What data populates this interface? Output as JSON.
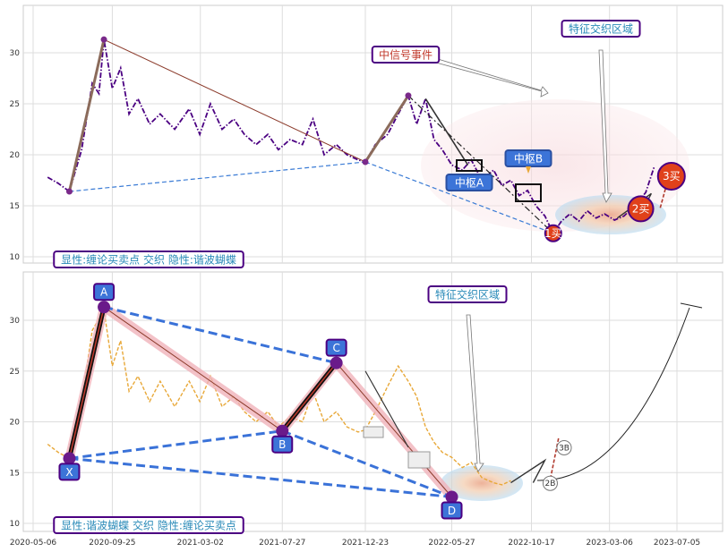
{
  "chart_data": [
    {
      "type": "line",
      "panel": "top",
      "ylim": [
        9,
        34
      ],
      "yticks": [
        10,
        15,
        20,
        25,
        30
      ],
      "grid": true,
      "price_series": {
        "color": "#4b0082",
        "style": "dash-dot",
        "x": [
          "2020-06-01",
          "2020-06-20",
          "2020-07-10",
          "2020-08-01",
          "2020-08-20",
          "2020-09-01",
          "2020-09-10",
          "2020-09-25",
          "2020-10-10",
          "2020-10-25",
          "2020-11-10",
          "2020-12-01",
          "2020-12-20",
          "2021-01-15",
          "2021-02-10",
          "2021-03-01",
          "2021-03-20",
          "2021-04-10",
          "2021-05-01",
          "2021-05-20",
          "2021-06-10",
          "2021-07-01",
          "2021-07-20",
          "2021-08-10",
          "2021-09-01",
          "2021-09-20",
          "2021-10-10",
          "2021-11-01",
          "2021-11-20",
          "2021-12-10",
          "2021-12-23",
          "2022-01-10",
          "2022-02-01",
          "2022-02-20",
          "2022-03-10",
          "2022-03-25",
          "2022-04-10",
          "2022-04-25",
          "2022-05-10",
          "2022-05-27",
          "2022-06-15",
          "2022-07-01",
          "2022-07-20",
          "2022-08-10",
          "2022-08-25",
          "2022-09-10",
          "2022-09-25",
          "2022-10-10",
          "2022-10-25",
          "2022-11-10",
          "2022-11-25",
          "2022-12-10",
          "2022-12-25",
          "2023-01-10",
          "2023-01-25",
          "2023-02-10",
          "2023-02-25",
          "2023-03-15",
          "2023-04-01",
          "2023-04-20",
          "2023-05-10",
          "2023-05-25"
        ],
        "y": [
          17.8,
          17.2,
          16.4,
          20.5,
          27.0,
          26.0,
          31.3,
          26.5,
          28.5,
          24.0,
          25.5,
          23.0,
          24.0,
          22.5,
          24.5,
          22.0,
          25.0,
          22.5,
          23.5,
          22.0,
          21.0,
          22.0,
          20.5,
          21.5,
          21.0,
          23.5,
          20.0,
          21.0,
          20.0,
          19.5,
          19.3,
          21.0,
          22.0,
          24.0,
          25.8,
          23.0,
          25.5,
          21.5,
          20.5,
          19.0,
          18.5,
          19.5,
          17.5,
          18.5,
          17.0,
          17.5,
          16.0,
          16.5,
          15.0,
          14.0,
          12.3,
          13.5,
          14.2,
          13.5,
          14.5,
          13.8,
          14.2,
          13.6,
          14.0,
          15.0,
          16.3,
          18.8
        ]
      },
      "segments": [
        {
          "x": [
            "2020-07-10",
            "2020-09-10"
          ],
          "y": [
            16.4,
            31.3
          ],
          "color": "#8b6b5b",
          "width": 3
        },
        {
          "x": [
            "2020-09-10",
            "2021-12-23"
          ],
          "y": [
            31.3,
            19.3
          ],
          "color": "#8b3a2a",
          "width": 1
        },
        {
          "x": [
            "2021-12-23",
            "2022-03-10"
          ],
          "y": [
            19.3,
            25.8
          ],
          "color": "#8b6b5b",
          "width": 3
        },
        {
          "x": [
            "2020-07-10",
            "2021-12-23"
          ],
          "y": [
            16.4,
            19.3
          ],
          "color": "#3a7bd5",
          "width": 1.2,
          "dash": true
        },
        {
          "x": [
            "2021-12-23",
            "2022-11-25"
          ],
          "y": [
            19.3,
            12.3
          ],
          "color": "#3a7bd5",
          "width": 1.2,
          "dash": true
        }
      ],
      "pivots": [
        {
          "x": "2020-07-10",
          "y": 16.4
        },
        {
          "x": "2020-09-10",
          "y": 31.3
        },
        {
          "x": "2021-12-23",
          "y": 19.3
        },
        {
          "x": "2022-03-10",
          "y": 25.8
        }
      ],
      "annotations": [
        {
          "text": "中信号事件",
          "x": "2022-01-10",
          "y": 29.5,
          "text_color": "#c0392b",
          "border": "#4b0082"
        },
        {
          "text": "特征交织区域",
          "x": "2023-03-15",
          "y": 32.2,
          "text_color": "#2a8ab8",
          "border": "#4b0082"
        },
        {
          "text": "显性:缠论买卖点 交织 隐性:谐波蝴蝶",
          "x": "2020-06-01",
          "y": 9.6,
          "text_color": "#2a8ab8",
          "border": "#4b0082"
        }
      ],
      "zones": [
        {
          "label": "中枢A",
          "x": "2022-07-10",
          "y": 18.9
        },
        {
          "label": "中枢B",
          "x": "2022-09-15",
          "y": 16.0
        }
      ],
      "buy_points": [
        {
          "label": "1买",
          "x": "2022-11-25",
          "y": 12.3
        },
        {
          "label": "2买",
          "x": "2023-05-01",
          "y": 14.7
        },
        {
          "label": "3买",
          "x": "2023-06-25",
          "y": 17.9
        }
      ]
    },
    {
      "type": "line",
      "panel": "bottom",
      "ylim": [
        9,
        34
      ],
      "yticks": [
        10,
        15,
        20,
        25,
        30
      ],
      "xlabels": [
        "2020-05-06",
        "2020-09-25",
        "2021-03-02",
        "2021-07-27",
        "2021-12-23",
        "2022-05-27",
        "2022-10-17",
        "2023-03-06",
        "2023-07-05"
      ],
      "grid": true,
      "price_series": {
        "color": "#e8a838",
        "style": "dashed",
        "x": [
          "2020-06-01",
          "2020-06-20",
          "2020-07-10",
          "2020-08-01",
          "2020-08-20",
          "2020-09-10",
          "2020-09-25",
          "2020-10-10",
          "2020-10-25",
          "2020-11-10",
          "2020-12-01",
          "2020-12-20",
          "2021-01-15",
          "2021-02-10",
          "2021-03-01",
          "2021-03-20",
          "2021-04-10",
          "2021-05-01",
          "2021-05-20",
          "2021-06-10",
          "2021-07-01",
          "2021-07-20",
          "2021-08-10",
          "2021-09-01",
          "2021-09-20",
          "2021-10-10",
          "2021-11-01",
          "2021-11-20",
          "2021-12-10",
          "2021-12-23",
          "2022-01-10",
          "2022-02-01",
          "2022-02-20",
          "2022-03-10",
          "2022-03-25",
          "2022-04-10",
          "2022-04-25",
          "2022-05-10",
          "2022-05-27",
          "2022-06-15",
          "2022-07-01",
          "2022-07-20",
          "2022-08-10",
          "2022-08-25",
          "2022-09-10"
        ],
        "y": [
          17.8,
          17.0,
          16.4,
          22.0,
          29.0,
          31.0,
          25.5,
          28.0,
          23.0,
          24.5,
          22.0,
          24.0,
          21.5,
          24.0,
          22.0,
          24.5,
          21.5,
          22.5,
          21.0,
          20.0,
          21.0,
          19.5,
          20.5,
          20.0,
          23.0,
          20.0,
          21.0,
          19.5,
          19.0,
          19.2,
          21.0,
          23.5,
          25.5,
          24.0,
          22.5,
          19.5,
          18.0,
          17.0,
          16.5,
          15.5,
          16.0,
          14.5,
          14.0,
          13.8,
          14.2
        ]
      },
      "harmonic_points": [
        {
          "label": "X",
          "x": "2020-07-10",
          "y": 16.4
        },
        {
          "label": "A",
          "x": "2020-09-10",
          "y": 31.3
        },
        {
          "label": "B",
          "x": "2021-07-27",
          "y": 19.1
        },
        {
          "label": "C",
          "x": "2021-11-01",
          "y": 25.8
        },
        {
          "label": "D",
          "x": "2022-05-27",
          "y": 12.6
        }
      ],
      "buy_points": [
        {
          "label": "2B",
          "x": "2022-11-10",
          "y": 14.3
        },
        {
          "label": "3B",
          "x": "2022-12-05",
          "y": 17.8
        }
      ],
      "annotations": [
        {
          "text": "特征交织区域",
          "x": "2022-03-25",
          "y": 32.2,
          "text_color": "#2a8ab8",
          "border": "#4b0082"
        },
        {
          "text": "显性:谐波蝴蝶 交织 隐性:缠论买卖点",
          "x": "2020-06-01",
          "y": 9.6,
          "text_color": "#2a8ab8",
          "border": "#4b0082"
        }
      ]
    }
  ]
}
